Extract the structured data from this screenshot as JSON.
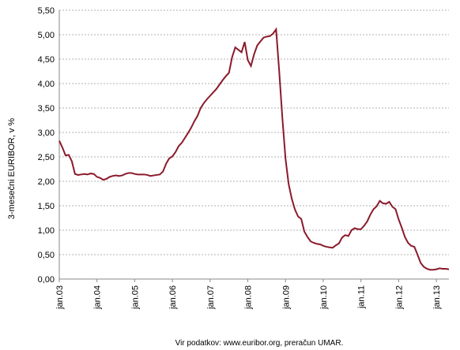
{
  "chart_data": {
    "type": "line",
    "y_label": "3-mesečni EURIBOR, v %",
    "source": "Vir podatkov: www.euribor.org, preračun UMAR.",
    "categories": [
      "jan.03",
      null,
      null,
      null,
      null,
      null,
      null,
      null,
      null,
      null,
      null,
      null,
      "jan.04",
      null,
      null,
      null,
      null,
      null,
      null,
      null,
      null,
      null,
      null,
      null,
      "jan.05",
      null,
      null,
      null,
      null,
      null,
      null,
      null,
      null,
      null,
      null,
      null,
      "jan.06",
      null,
      null,
      null,
      null,
      null,
      null,
      null,
      null,
      null,
      null,
      null,
      "jan.07",
      null,
      null,
      null,
      null,
      null,
      null,
      null,
      null,
      null,
      null,
      null,
      "jan.08",
      null,
      null,
      null,
      null,
      null,
      null,
      null,
      null,
      null,
      null,
      null,
      "jan.09",
      null,
      null,
      null,
      null,
      null,
      null,
      null,
      null,
      null,
      null,
      null,
      "jan.10",
      null,
      null,
      null,
      null,
      null,
      null,
      null,
      null,
      null,
      null,
      null,
      "jan.11",
      null,
      null,
      null,
      null,
      null,
      null,
      null,
      null,
      null,
      null,
      null,
      "jan.12",
      null,
      null,
      null,
      null,
      null,
      null,
      null,
      null,
      null,
      null,
      null,
      "jan.13",
      null,
      null,
      null,
      null
    ],
    "series": [
      {
        "name": "3-mesečni EURIBOR",
        "color": "#8b1a2b",
        "values": [
          2.83,
          2.69,
          2.53,
          2.54,
          2.41,
          2.15,
          2.13,
          2.14,
          2.15,
          2.14,
          2.16,
          2.15,
          2.09,
          2.07,
          2.03,
          2.05,
          2.09,
          2.11,
          2.12,
          2.11,
          2.12,
          2.15,
          2.17,
          2.17,
          2.15,
          2.14,
          2.14,
          2.14,
          2.13,
          2.11,
          2.12,
          2.13,
          2.14,
          2.2,
          2.36,
          2.47,
          2.51,
          2.6,
          2.72,
          2.79,
          2.89,
          2.99,
          3.1,
          3.23,
          3.34,
          3.5,
          3.6,
          3.68,
          3.75,
          3.82,
          3.89,
          3.98,
          4.07,
          4.15,
          4.22,
          4.54,
          4.74,
          4.69,
          4.64,
          4.85,
          4.48,
          4.36,
          4.6,
          4.78,
          4.86,
          4.94,
          4.96,
          4.97,
          5.02,
          5.11,
          4.24,
          3.29,
          2.46,
          1.94,
          1.64,
          1.42,
          1.28,
          1.23,
          0.97,
          0.86,
          0.77,
          0.74,
          0.72,
          0.71,
          0.68,
          0.66,
          0.65,
          0.64,
          0.69,
          0.73,
          0.85,
          0.9,
          0.88,
          1.0,
          1.04,
          1.02,
          1.02,
          1.09,
          1.18,
          1.32,
          1.43,
          1.49,
          1.6,
          1.55,
          1.54,
          1.58,
          1.48,
          1.43,
          1.22,
          1.05,
          0.86,
          0.74,
          0.68,
          0.66,
          0.5,
          0.33,
          0.25,
          0.21,
          0.19,
          0.19,
          0.2,
          0.22,
          0.21,
          0.21,
          0.2
        ]
      }
    ],
    "ylim": [
      0,
      5.5
    ],
    "yticks": [
      {
        "value": 0,
        "label": "0,00"
      },
      {
        "value": 0.5,
        "label": "0,50"
      },
      {
        "value": 1,
        "label": "1,00"
      },
      {
        "value": 1.5,
        "label": "1,50"
      },
      {
        "value": 2,
        "label": "2,00"
      },
      {
        "value": 2.5,
        "label": "2,50"
      },
      {
        "value": 3,
        "label": "3,00"
      },
      {
        "value": 3.5,
        "label": "3,50"
      },
      {
        "value": 4,
        "label": "4,00"
      },
      {
        "value": 4.5,
        "label": "4,50"
      },
      {
        "value": 5,
        "label": "5,00"
      },
      {
        "value": 5.5,
        "label": "5,50"
      }
    ],
    "grid": true
  }
}
